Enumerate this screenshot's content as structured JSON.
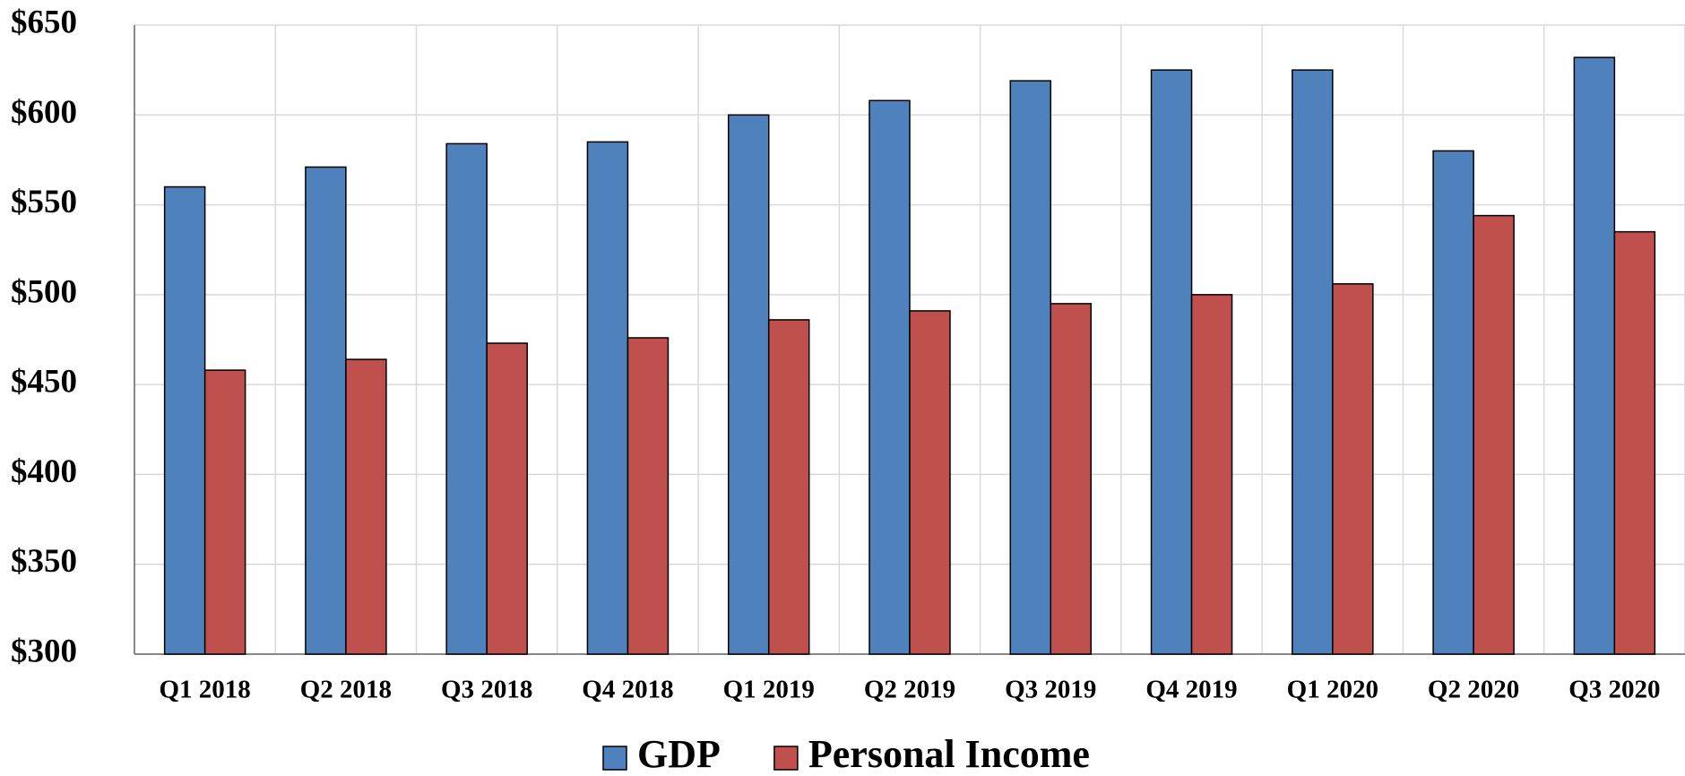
{
  "chart_data": {
    "type": "bar",
    "categories": [
      "Q1 2018",
      "Q2 2018",
      "Q3 2018",
      "Q4 2018",
      "Q1 2019",
      "Q2 2019",
      "Q3 2019",
      "Q4 2019",
      "Q1 2020",
      "Q2 2020",
      "Q3 2020"
    ],
    "series": [
      {
        "name": "GDP",
        "color": "#4f81bd",
        "values": [
          560,
          571,
          584,
          585,
          600,
          608,
          619,
          625,
          625,
          580,
          632
        ]
      },
      {
        "name": "Personal Income",
        "color": "#c0504d",
        "values": [
          458,
          464,
          473,
          476,
          486,
          491,
          495,
          500,
          506,
          544,
          535
        ]
      }
    ],
    "ylim": [
      300,
      650
    ],
    "yticks": [
      {
        "value": 300,
        "label": "$300"
      },
      {
        "value": 350,
        "label": "$350"
      },
      {
        "value": 400,
        "label": "$400"
      },
      {
        "value": 450,
        "label": "$450"
      },
      {
        "value": 500,
        "label": "$500"
      },
      {
        "value": 550,
        "label": "$550"
      },
      {
        "value": 600,
        "label": "$600"
      },
      {
        "value": 650,
        "label": "$650"
      }
    ],
    "grid": true,
    "legend": "bottom"
  }
}
